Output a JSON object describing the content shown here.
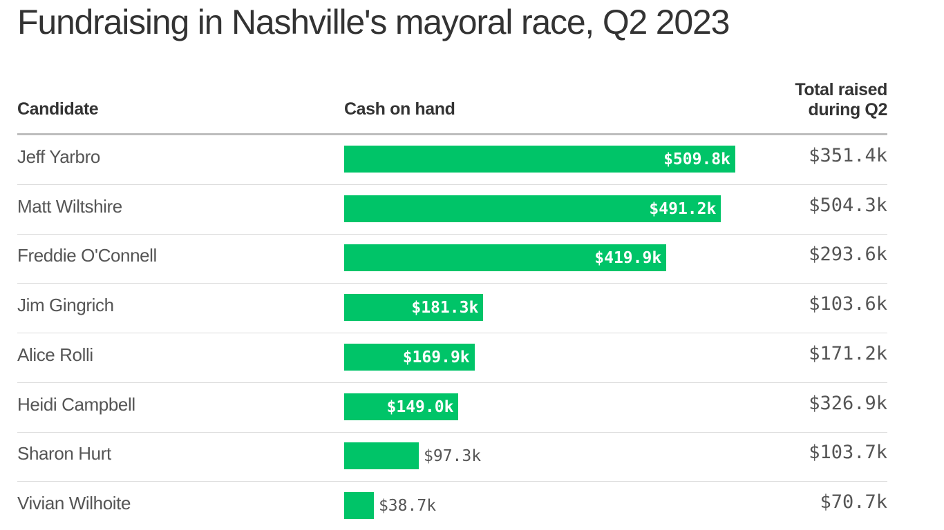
{
  "chart_data": {
    "type": "table",
    "title": "Fundraising in Nashville's mayoral race, Q2 2023",
    "columns": {
      "candidate": "Candidate",
      "cash": "Cash on hand",
      "total_line1": "Total raised",
      "total_line2": "during Q2"
    },
    "bar_color": "#00c468",
    "categories": [
      "Jeff Yarbro",
      "Matt Wiltshire",
      "Freddie O'Connell",
      "Jim Gingrich",
      "Alice Rolli",
      "Heidi Campbell",
      "Sharon Hurt",
      "Vivian Wilhoite"
    ],
    "series": [
      {
        "name": "Cash on hand",
        "values": [
          509.8,
          491.2,
          419.9,
          181.3,
          169.9,
          149.0,
          97.3,
          38.7
        ],
        "labels": [
          "$509.8k",
          "$491.2k",
          "$419.9k",
          "$181.3k",
          "$169.9k",
          "$149.0k",
          "$97.3k",
          "$38.7k"
        ]
      },
      {
        "name": "Total raised during Q2",
        "values": [
          351.4,
          504.3,
          293.6,
          103.6,
          171.2,
          326.9,
          103.7,
          70.7
        ],
        "labels": [
          "$351.4k",
          "$504.3k",
          "$293.6k",
          "$103.6k",
          "$171.2k",
          "$326.9k",
          "$103.7k",
          "$70.7k"
        ]
      }
    ]
  }
}
